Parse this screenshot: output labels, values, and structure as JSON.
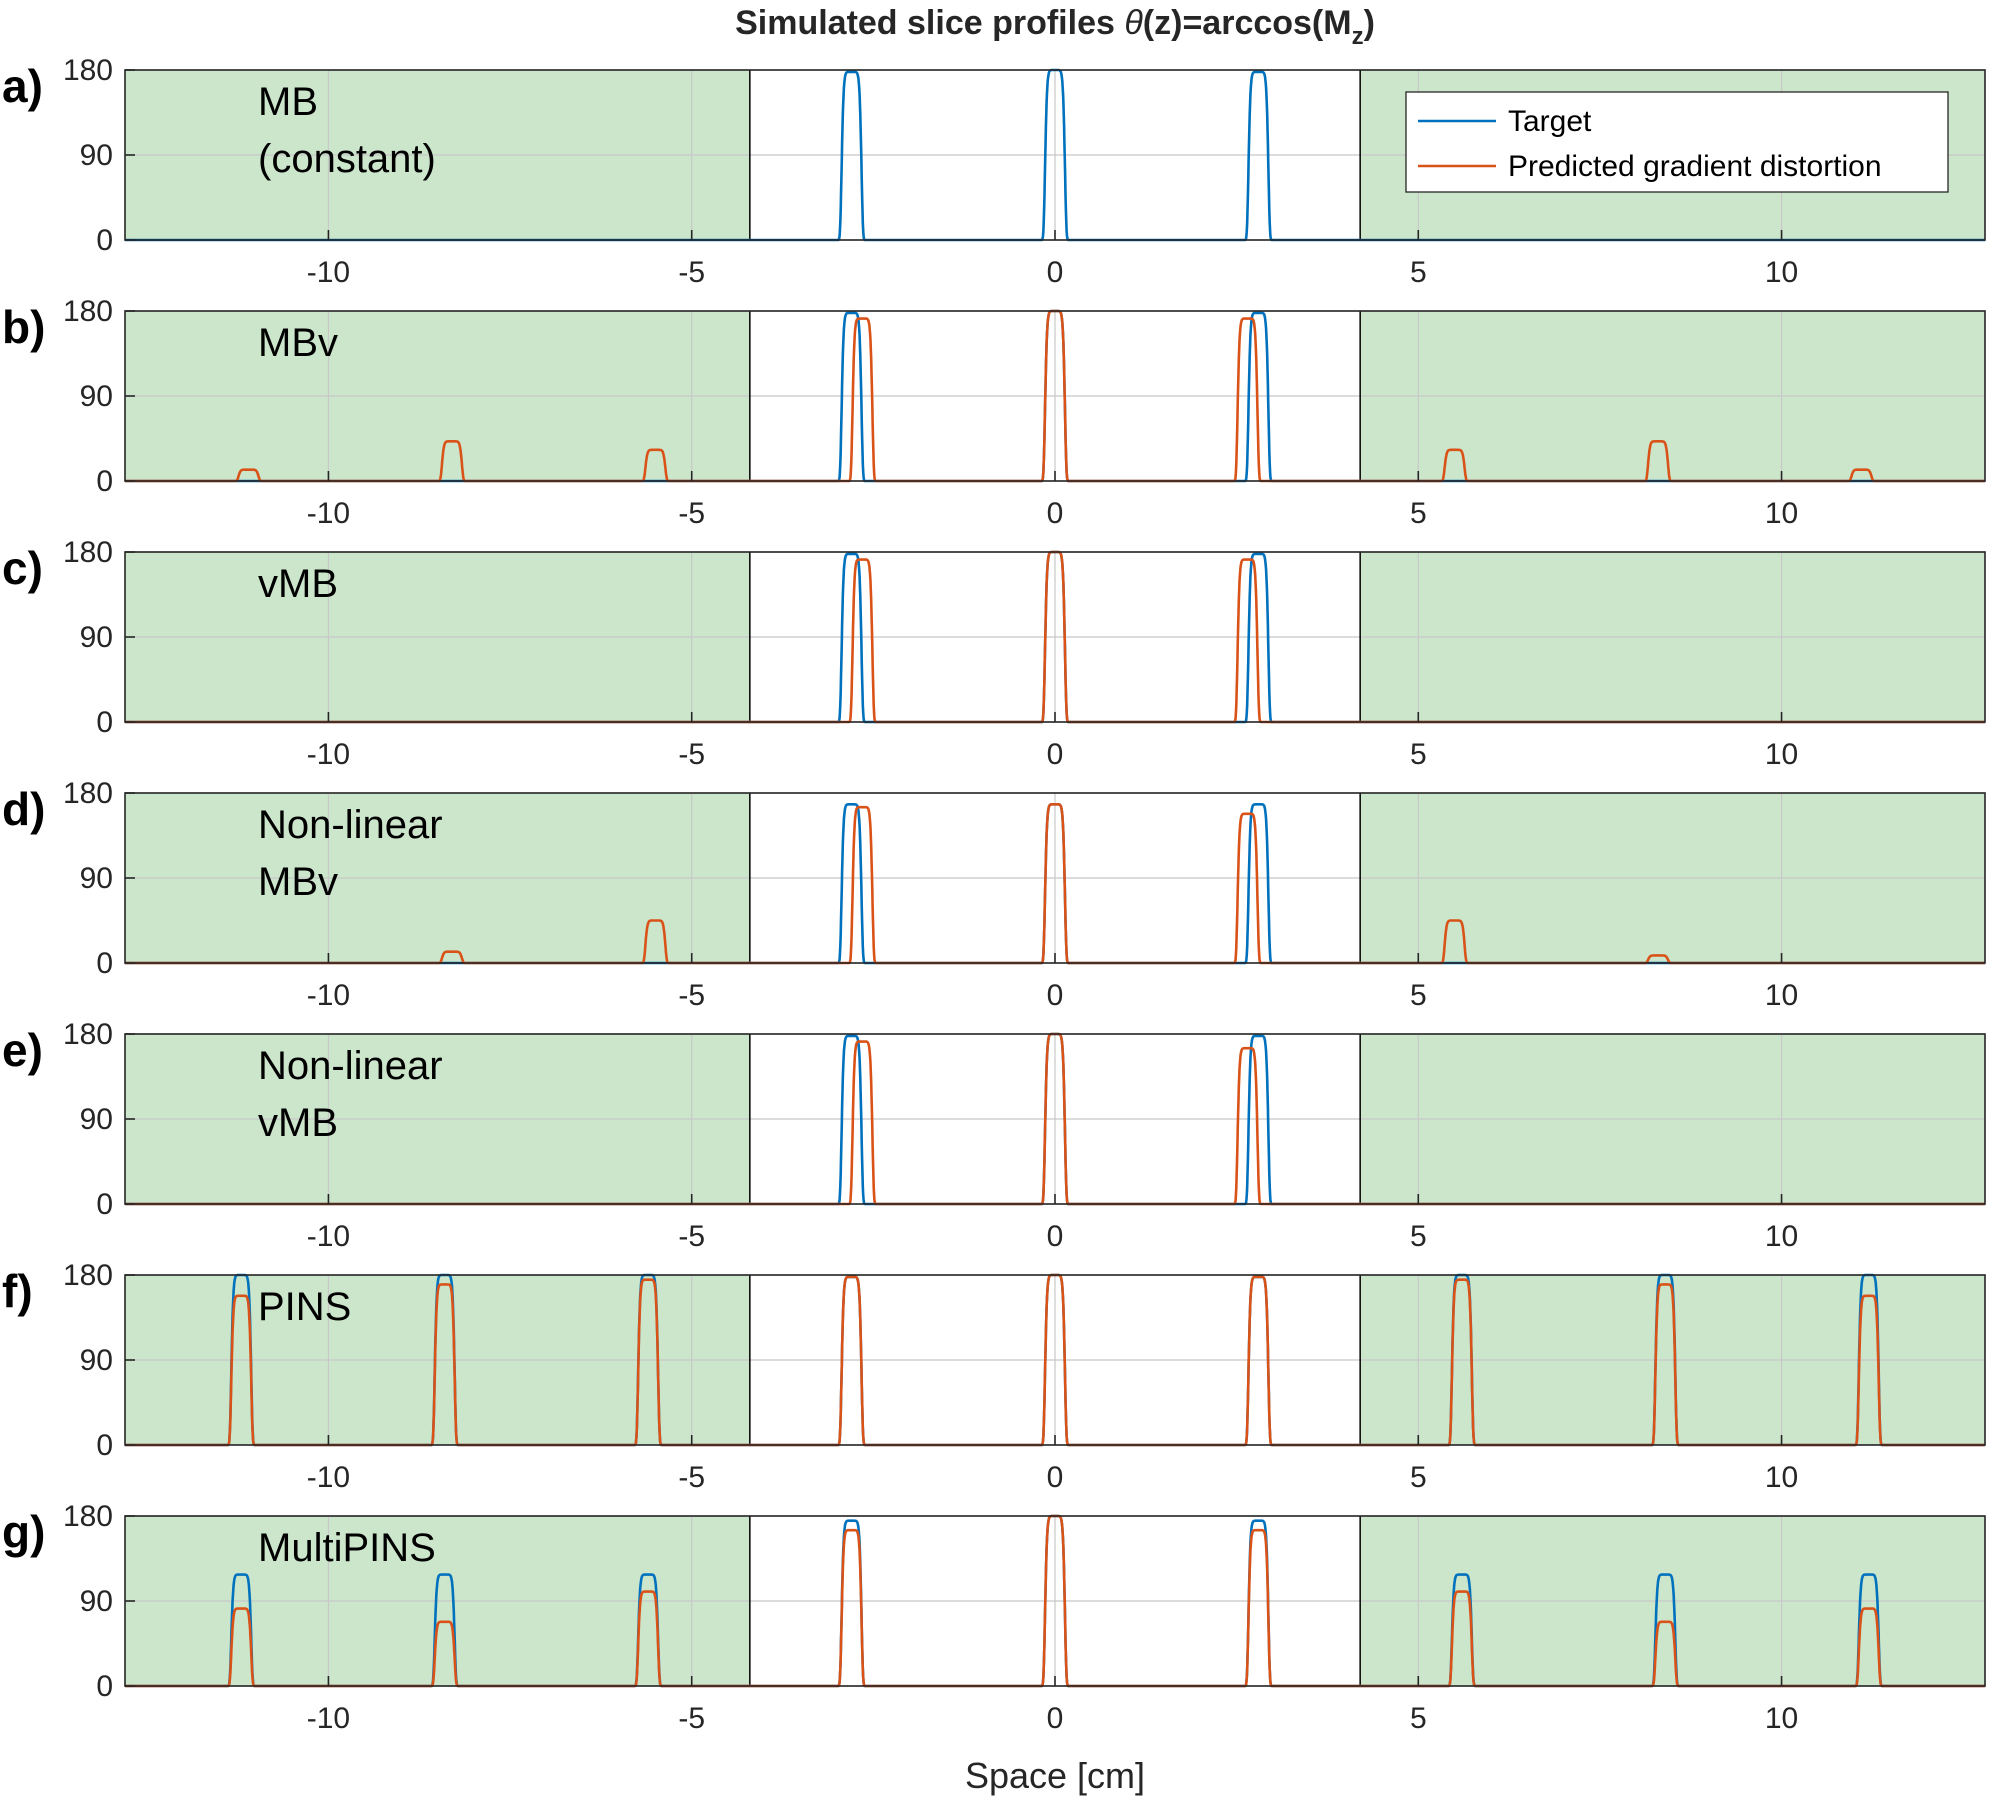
{
  "colors": {
    "target": "#0072BD",
    "predicted": "#D95319",
    "shade": "#CCE6CC",
    "axis": "#262626",
    "grid": "#C8C8C8"
  },
  "chart_data": {
    "type": "line",
    "title_prefix": "Simulated slice profiles ",
    "title_theta": "θ",
    "title_mid": "(z)=arccos(M",
    "title_sub": "z",
    "title_end": ")",
    "xlabel": "Space [cm]",
    "xlim": [
      -12.8,
      12.8
    ],
    "ylim": [
      0,
      180
    ],
    "xticks": [
      -10,
      -5,
      0,
      5,
      10
    ],
    "yticks": [
      0,
      90,
      180
    ],
    "shaded_regions": [
      [
        -12.8,
        -4.2
      ],
      [
        4.2,
        12.8
      ]
    ],
    "legend": {
      "position": "top-right of panel a",
      "entries": [
        "Target",
        "Predicted gradient distortion"
      ]
    },
    "panels": [
      {
        "label": "a)",
        "method": [
          "MB",
          "(constant)"
        ],
        "target_peaks": [
          {
            "x": -2.8,
            "h": 178
          },
          {
            "x": 0,
            "h": 180
          },
          {
            "x": 2.8,
            "h": 178
          }
        ],
        "predicted_peaks": [],
        "series": [
          {
            "name": "Target"
          }
        ]
      },
      {
        "label": "b)",
        "method": [
          "MBv"
        ],
        "target_peaks": [
          {
            "x": -2.8,
            "h": 178
          },
          {
            "x": 0,
            "h": 180
          },
          {
            "x": 2.8,
            "h": 178
          }
        ],
        "predicted_peaks": [
          {
            "x": -2.65,
            "h": 172
          },
          {
            "x": 0,
            "h": 180
          },
          {
            "x": 2.65,
            "h": 172
          },
          {
            "x": -11.1,
            "h": 12
          },
          {
            "x": -8.3,
            "h": 42
          },
          {
            "x": -5.5,
            "h": 33
          },
          {
            "x": 5.5,
            "h": 33
          },
          {
            "x": 8.3,
            "h": 42
          },
          {
            "x": 11.1,
            "h": 12
          }
        ],
        "series": [
          {
            "name": "Target"
          },
          {
            "name": "Predicted gradient distortion"
          }
        ]
      },
      {
        "label": "c)",
        "method": [
          "vMB"
        ],
        "target_peaks": [
          {
            "x": -2.8,
            "h": 178
          },
          {
            "x": 0,
            "h": 180
          },
          {
            "x": 2.8,
            "h": 178
          }
        ],
        "predicted_peaks": [
          {
            "x": -2.65,
            "h": 172
          },
          {
            "x": 0,
            "h": 180
          },
          {
            "x": 2.65,
            "h": 172
          }
        ],
        "series": [
          {
            "name": "Target"
          },
          {
            "name": "Predicted gradient distortion"
          }
        ]
      },
      {
        "label": "d)",
        "method": [
          "Non-linear",
          "MBv"
        ],
        "target_peaks": [
          {
            "x": -2.8,
            "h": 168
          },
          {
            "x": 0,
            "h": 168
          },
          {
            "x": 2.8,
            "h": 168
          }
        ],
        "predicted_peaks": [
          {
            "x": -2.65,
            "h": 165
          },
          {
            "x": 0,
            "h": 168
          },
          {
            "x": 2.65,
            "h": 158
          },
          {
            "x": -5.5,
            "h": 45
          },
          {
            "x": -8.3,
            "h": 12
          },
          {
            "x": 5.5,
            "h": 45
          },
          {
            "x": 8.3,
            "h": 8
          }
        ],
        "series": [
          {
            "name": "Target"
          },
          {
            "name": "Predicted gradient distortion"
          }
        ]
      },
      {
        "label": "e)",
        "method": [
          "Non-linear",
          "vMB"
        ],
        "target_peaks": [
          {
            "x": -2.8,
            "h": 178
          },
          {
            "x": 0,
            "h": 180
          },
          {
            "x": 2.8,
            "h": 178
          }
        ],
        "predicted_peaks": [
          {
            "x": -2.65,
            "h": 172
          },
          {
            "x": 0,
            "h": 180
          },
          {
            "x": 2.65,
            "h": 165
          }
        ],
        "series": [
          {
            "name": "Target"
          },
          {
            "name": "Predicted gradient distortion"
          }
        ]
      },
      {
        "label": "f)",
        "method": [
          "PINS"
        ],
        "target_peaks": [
          {
            "x": -11.2,
            "h": 180
          },
          {
            "x": -8.4,
            "h": 180
          },
          {
            "x": -5.6,
            "h": 180
          },
          {
            "x": -2.8,
            "h": 178
          },
          {
            "x": 0,
            "h": 180
          },
          {
            "x": 2.8,
            "h": 178
          },
          {
            "x": 5.6,
            "h": 180
          },
          {
            "x": 8.4,
            "h": 180
          },
          {
            "x": 11.2,
            "h": 180
          }
        ],
        "predicted_peaks": [
          {
            "x": -11.2,
            "h": 158
          },
          {
            "x": -8.4,
            "h": 170
          },
          {
            "x": -5.6,
            "h": 175
          },
          {
            "x": -2.8,
            "h": 178
          },
          {
            "x": 0,
            "h": 180
          },
          {
            "x": 2.8,
            "h": 178
          },
          {
            "x": 5.6,
            "h": 175
          },
          {
            "x": 8.4,
            "h": 170
          },
          {
            "x": 11.2,
            "h": 158
          }
        ],
        "series": [
          {
            "name": "Target"
          },
          {
            "name": "Predicted gradient distortion"
          }
        ]
      },
      {
        "label": "g)",
        "method": [
          "MultiPINS"
        ],
        "target_peaks": [
          {
            "x": -11.2,
            "h": 118
          },
          {
            "x": -8.4,
            "h": 118
          },
          {
            "x": -5.6,
            "h": 118
          },
          {
            "x": -2.8,
            "h": 175
          },
          {
            "x": 0,
            "h": 180
          },
          {
            "x": 2.8,
            "h": 175
          },
          {
            "x": 5.6,
            "h": 118
          },
          {
            "x": 8.4,
            "h": 118
          },
          {
            "x": 11.2,
            "h": 118
          }
        ],
        "predicted_peaks": [
          {
            "x": -11.2,
            "h": 82
          },
          {
            "x": -8.4,
            "h": 68
          },
          {
            "x": -5.6,
            "h": 100
          },
          {
            "x": -2.8,
            "h": 165
          },
          {
            "x": 0,
            "h": 180
          },
          {
            "x": 2.8,
            "h": 165
          },
          {
            "x": 5.6,
            "h": 100
          },
          {
            "x": 8.4,
            "h": 68
          },
          {
            "x": 11.2,
            "h": 82
          }
        ],
        "series": [
          {
            "name": "Target"
          },
          {
            "name": "Predicted gradient distortion"
          }
        ]
      }
    ]
  }
}
